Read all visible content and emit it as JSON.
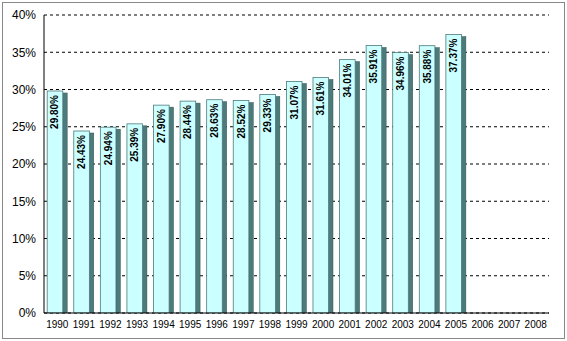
{
  "chart_data": {
    "type": "bar",
    "categories": [
      "1990",
      "1991",
      "1992",
      "1993",
      "1994",
      "1995",
      "1996",
      "1997",
      "1998",
      "1999",
      "2000",
      "2001",
      "2002",
      "2003",
      "2004",
      "2005",
      "2006",
      "2007",
      "2008"
    ],
    "values": [
      29.8,
      24.43,
      24.94,
      25.39,
      27.9,
      28.44,
      28.63,
      28.52,
      29.33,
      31.07,
      31.61,
      34.01,
      35.91,
      34.96,
      35.88,
      37.37,
      null,
      null,
      null
    ],
    "value_labels": [
      "29.80%",
      "24.43%",
      "24.94%",
      "25.39%",
      "27.90%",
      "28.44%",
      "28.63%",
      "28.52%",
      "29.33%",
      "31.07%",
      "31.61%",
      "34.01%",
      "35.91%",
      "34.96%",
      "35.88%",
      "37.37%",
      null,
      null,
      null
    ],
    "color": "#ccffff",
    "ylim": [
      0,
      40
    ],
    "yticks": [
      {
        "value": 0,
        "label": "0%"
      },
      {
        "value": 5,
        "label": "5%"
      },
      {
        "value": 10,
        "label": "10%"
      },
      {
        "value": 15,
        "label": "15%"
      },
      {
        "value": 20,
        "label": "20%"
      },
      {
        "value": 25,
        "label": "25%"
      },
      {
        "value": 30,
        "label": "30%"
      },
      {
        "value": 35,
        "label": "35%"
      },
      {
        "value": 40,
        "label": "40%"
      }
    ],
    "grid": true,
    "data_labels": true
  }
}
